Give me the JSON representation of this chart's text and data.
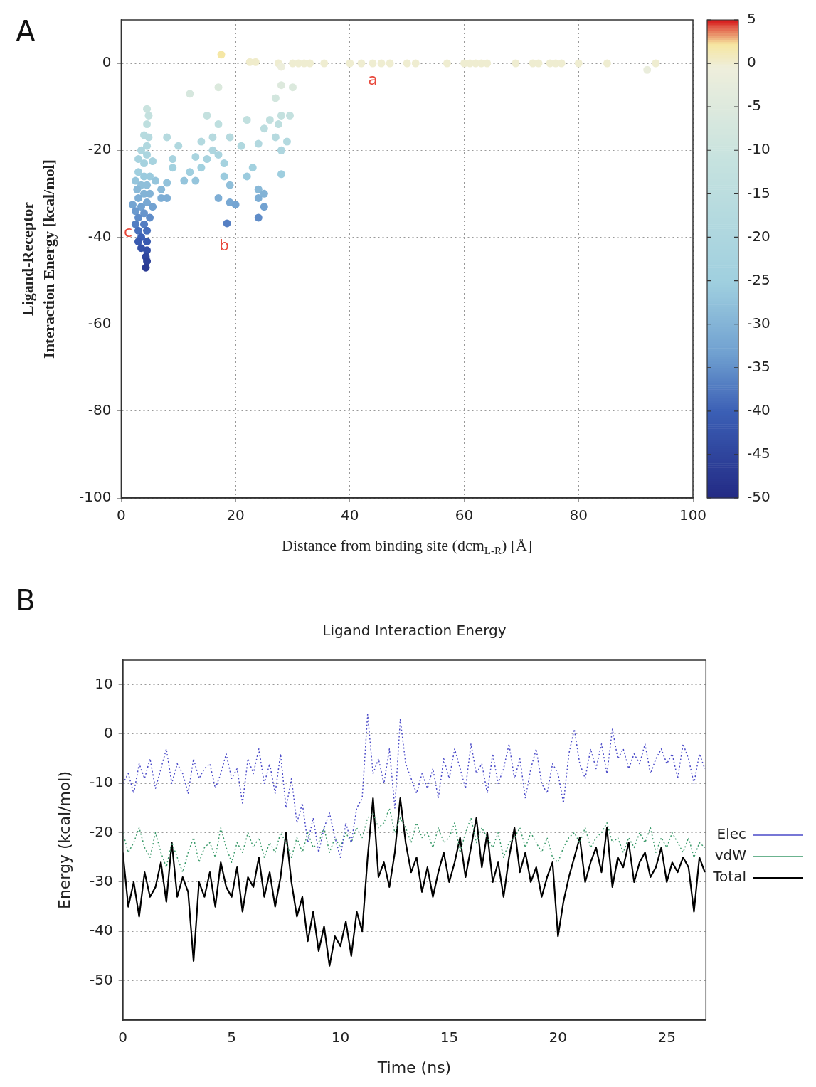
{
  "chart_data": [
    {
      "type": "scatter",
      "xlabel": "Distance from binding site (dcm$_{L-R}$) [Å]",
      "ylabel": "Ligand-Receptor\nInteraction Energy [kcal/mol]",
      "xlim": [
        0,
        100
      ],
      "xticks": [
        0,
        20,
        40,
        60,
        80,
        100
      ],
      "ylim": [
        -100,
        10
      ],
      "yticks": [
        -100,
        -80,
        -60,
        -40,
        -20,
        0
      ],
      "grid": true,
      "marker": "circle",
      "clim": [
        -50,
        5
      ],
      "cticks": [
        -50,
        -45,
        -40,
        -35,
        -30,
        -25,
        -20,
        -15,
        -10,
        -5,
        0,
        5
      ],
      "x": [
        4.5,
        4.8,
        4.5,
        4,
        4.8,
        4.5,
        3.5,
        4.5,
        3,
        4,
        5.5,
        3,
        4,
        5,
        2.5,
        3.5,
        4.5,
        2.8,
        4,
        5,
        3,
        4.5,
        2,
        3.5,
        5.5,
        2.5,
        4,
        3,
        5,
        2.5,
        4,
        3,
        4.5,
        3.5,
        3,
        4.5,
        3.5,
        4.5,
        4.3,
        4.5,
        4.3,
        6,
        7,
        7,
        8,
        8,
        9,
        9,
        10,
        8,
        11,
        12,
        12,
        13,
        13,
        14,
        14,
        15,
        15,
        16,
        16,
        17,
        17,
        17,
        18,
        18,
        19,
        19,
        17,
        18.5,
        19,
        20,
        21,
        22,
        22,
        23,
        24,
        24,
        24,
        24,
        25,
        25,
        25,
        26,
        27,
        27,
        28,
        28,
        28,
        29,
        30,
        28,
        27.5,
        29.5,
        17.5,
        22.5,
        23.5,
        27.5,
        28,
        30,
        31,
        32,
        33,
        35.5,
        40,
        42,
        44,
        45.5,
        47,
        50,
        51.5,
        57,
        60,
        61,
        62,
        63,
        64,
        69,
        72,
        73,
        75,
        76,
        77,
        80,
        85,
        92,
        93.5
      ],
      "values": [
        -10.5,
        -12,
        -14,
        -16.5,
        -17,
        -19,
        -20,
        -21,
        -22,
        -23,
        -22.5,
        -25,
        -26,
        -26,
        -27,
        -28,
        -28,
        -29,
        -30,
        -30,
        -31,
        -32,
        -32.5,
        -33,
        -33,
        -34,
        -34.5,
        -35.5,
        -35.5,
        -37,
        -37,
        -38.5,
        -38.5,
        -40,
        -41,
        -41,
        -42.5,
        -43,
        -44.5,
        -45.5,
        -47,
        -27,
        -29,
        -31,
        -27.5,
        -31,
        -24,
        -22,
        -19,
        -17,
        -27,
        -7,
        -25,
        -21.5,
        -27,
        -18,
        -24,
        -12,
        -22,
        -17,
        -20,
        -5.5,
        -14,
        -21,
        -26,
        -23,
        -17,
        -28,
        -31,
        -36.8,
        -32,
        -32.5,
        -19,
        -13,
        -26,
        -24,
        -18.5,
        -29,
        -31,
        -35.5,
        -33,
        -30,
        -15,
        -13,
        -17,
        -8,
        -5,
        -12,
        -20,
        -18,
        -5.5,
        -25.5,
        -14,
        -12,
        2,
        0.3,
        0.3,
        0,
        -0.8,
        0,
        0,
        0,
        0,
        0,
        0,
        0,
        0,
        0,
        0,
        0,
        0,
        0,
        0,
        0,
        0,
        0,
        0,
        0,
        0,
        0,
        0,
        0,
        0,
        0,
        0,
        -1.5,
        0
      ],
      "cvalues": [
        -10.5,
        -12,
        -14,
        -16.5,
        -17,
        -19,
        -20,
        -21,
        -22,
        -23,
        -22.5,
        -25,
        -26,
        -26,
        -27,
        -28,
        -28,
        -29,
        -30,
        -30,
        -31,
        -32,
        -32.5,
        -33,
        -33,
        -34,
        -34.5,
        -35.5,
        -35.5,
        -37,
        -37,
        -38.5,
        -38.5,
        -40,
        -41,
        -41,
        -42.5,
        -43,
        -44.5,
        -45.5,
        -47,
        -27,
        -29,
        -31,
        -27.5,
        -31,
        -24,
        -22,
        -19,
        -17,
        -27,
        -7,
        -25,
        -21.5,
        -27,
        -18,
        -24,
        -12,
        -22,
        -17,
        -20,
        -5.5,
        -14,
        -21,
        -26,
        -23,
        -17,
        -28,
        -31,
        -36.8,
        -32,
        -32.5,
        -19,
        -13,
        -26,
        -24,
        -18.5,
        -29,
        -31,
        -35.5,
        -33,
        -30,
        -15,
        -13,
        -17,
        -8,
        -5,
        -12,
        -20,
        -18,
        -5.5,
        -25.5,
        -14,
        -12,
        2,
        0.3,
        0.3,
        0,
        -0.8,
        0,
        0,
        0,
        0,
        0,
        0,
        0,
        0,
        0,
        0,
        0,
        0,
        0,
        0,
        0,
        0,
        0,
        0,
        0,
        0,
        0,
        0,
        0,
        0,
        0,
        0,
        -1.5,
        0
      ],
      "annotations": [
        "A",
        "a",
        "b",
        "c"
      ]
    },
    {
      "type": "line",
      "title": "Ligand Interaction Energy",
      "xlabel": "Time (ns)",
      "ylabel": "Energy (kcal/mol)",
      "xlim": [
        0,
        26.8
      ],
      "xticks": [
        0,
        5,
        10,
        15,
        20,
        25
      ],
      "ylim": [
        -58,
        15
      ],
      "yticks": [
        -50,
        -40,
        -30,
        -20,
        -10,
        0,
        10
      ],
      "grid": "y",
      "legend": "right",
      "marker": "none",
      "annotations": [
        "B"
      ],
      "x": [
        0,
        0.25,
        0.5,
        0.75,
        1,
        1.25,
        1.5,
        1.75,
        2,
        2.25,
        2.5,
        2.75,
        3,
        3.25,
        3.5,
        3.75,
        4,
        4.25,
        4.5,
        4.75,
        5,
        5.25,
        5.5,
        5.75,
        6,
        6.25,
        6.5,
        6.75,
        7,
        7.25,
        7.5,
        7.75,
        8,
        8.25,
        8.5,
        8.75,
        9,
        9.25,
        9.5,
        9.75,
        10,
        10.25,
        10.5,
        10.75,
        11,
        11.25,
        11.5,
        11.75,
        12,
        12.25,
        12.5,
        12.75,
        13,
        13.25,
        13.5,
        13.75,
        14,
        14.25,
        14.5,
        14.75,
        15,
        15.25,
        15.5,
        15.75,
        16,
        16.25,
        16.5,
        16.75,
        17,
        17.25,
        17.5,
        17.75,
        18,
        18.25,
        18.5,
        18.75,
        19,
        19.25,
        19.5,
        19.75,
        20,
        20.25,
        20.5,
        20.75,
        21,
        21.25,
        21.5,
        21.75,
        22,
        22.25,
        22.5,
        22.75,
        23,
        23.25,
        23.5,
        23.75,
        24,
        24.25,
        24.5,
        24.75,
        25,
        25.25,
        25.5,
        25.75,
        26,
        26.25,
        26.5,
        26.75
      ],
      "series": [
        {
          "name": "Elec",
          "color": "#4a4ac8",
          "line_style": "dotted",
          "values": [
            -10,
            -8,
            -12,
            -6,
            -9,
            -5,
            -11,
            -7,
            -3,
            -10,
            -6,
            -8,
            -12,
            -5,
            -9,
            -7,
            -6,
            -11,
            -8,
            -4,
            -9,
            -7,
            -14,
            -5,
            -8,
            -3,
            -10,
            -6,
            -12,
            -4,
            -15,
            -9,
            -18,
            -14,
            -22,
            -17,
            -24,
            -19,
            -16,
            -21,
            -25,
            -18,
            -22,
            -15,
            -13,
            4,
            -8,
            -5,
            -10,
            -3,
            -15,
            3,
            -6,
            -9,
            -12,
            -8,
            -11,
            -7,
            -13,
            -5,
            -9,
            -3,
            -7,
            -11,
            -2,
            -8,
            -6,
            -12,
            -4,
            -10,
            -7,
            -2,
            -9,
            -5,
            -13,
            -7,
            -3,
            -10,
            -12,
            -6,
            -8,
            -14,
            -4,
            1,
            -6,
            -9,
            -3,
            -7,
            -2,
            -8,
            1,
            -5,
            -3,
            -7,
            -4,
            -6,
            -2,
            -8,
            -5,
            -3,
            -6,
            -4,
            -9,
            -2,
            -5,
            -10,
            -4,
            -7
          ]
        },
        {
          "name": "vdW",
          "color": "#3a9a6a",
          "line_style": "dotted",
          "values": [
            -20,
            -24,
            -22,
            -19,
            -23,
            -25,
            -20,
            -24,
            -27,
            -22,
            -25,
            -28,
            -24,
            -21,
            -26,
            -23,
            -22,
            -25,
            -19,
            -23,
            -26,
            -22,
            -24,
            -20,
            -23,
            -21,
            -25,
            -22,
            -24,
            -20,
            -22,
            -25,
            -21,
            -24,
            -20,
            -23,
            -22,
            -19,
            -24,
            -21,
            -23,
            -20,
            -22,
            -19,
            -21,
            -17,
            -16,
            -19,
            -18,
            -15,
            -20,
            -17,
            -19,
            -22,
            -18,
            -21,
            -20,
            -23,
            -19,
            -22,
            -21,
            -18,
            -24,
            -20,
            -17,
            -22,
            -19,
            -21,
            -23,
            -20,
            -25,
            -22,
            -21,
            -19,
            -23,
            -20,
            -22,
            -24,
            -21,
            -25,
            -26,
            -23,
            -21,
            -20,
            -22,
            -19,
            -23,
            -21,
            -20,
            -18,
            -22,
            -21,
            -24,
            -21,
            -23,
            -20,
            -22,
            -19,
            -24,
            -21,
            -23,
            -20,
            -22,
            -24,
            -21,
            -25,
            -22,
            -23
          ]
        },
        {
          "name": "Total",
          "color": "#000000",
          "line_style": "solid",
          "values": [
            -24,
            -35,
            -30,
            -37,
            -28,
            -33,
            -31,
            -26,
            -34,
            -22,
            -33,
            -29,
            -32,
            -46,
            -30,
            -33,
            -28,
            -35,
            -26,
            -31,
            -33,
            -27,
            -36,
            -29,
            -31,
            -25,
            -33,
            -28,
            -35,
            -29,
            -20,
            -30,
            -37,
            -33,
            -42,
            -36,
            -44,
            -39,
            -47,
            -41,
            -43,
            -38,
            -45,
            -36,
            -40,
            -25,
            -13,
            -29,
            -26,
            -31,
            -24,
            -13,
            -22,
            -28,
            -25,
            -32,
            -27,
            -33,
            -28,
            -24,
            -30,
            -26,
            -21,
            -29,
            -23,
            -17,
            -27,
            -20,
            -30,
            -26,
            -33,
            -25,
            -19,
            -28,
            -24,
            -30,
            -27,
            -33,
            -29,
            -26,
            -41,
            -34,
            -29,
            -25,
            -21,
            -30,
            -26,
            -23,
            -28,
            -19,
            -31,
            -25,
            -27,
            -22,
            -30,
            -26,
            -24,
            -29,
            -27,
            -23,
            -30,
            -26,
            -28,
            -25,
            -27,
            -36,
            -25,
            -28
          ]
        }
      ]
    }
  ]
}
